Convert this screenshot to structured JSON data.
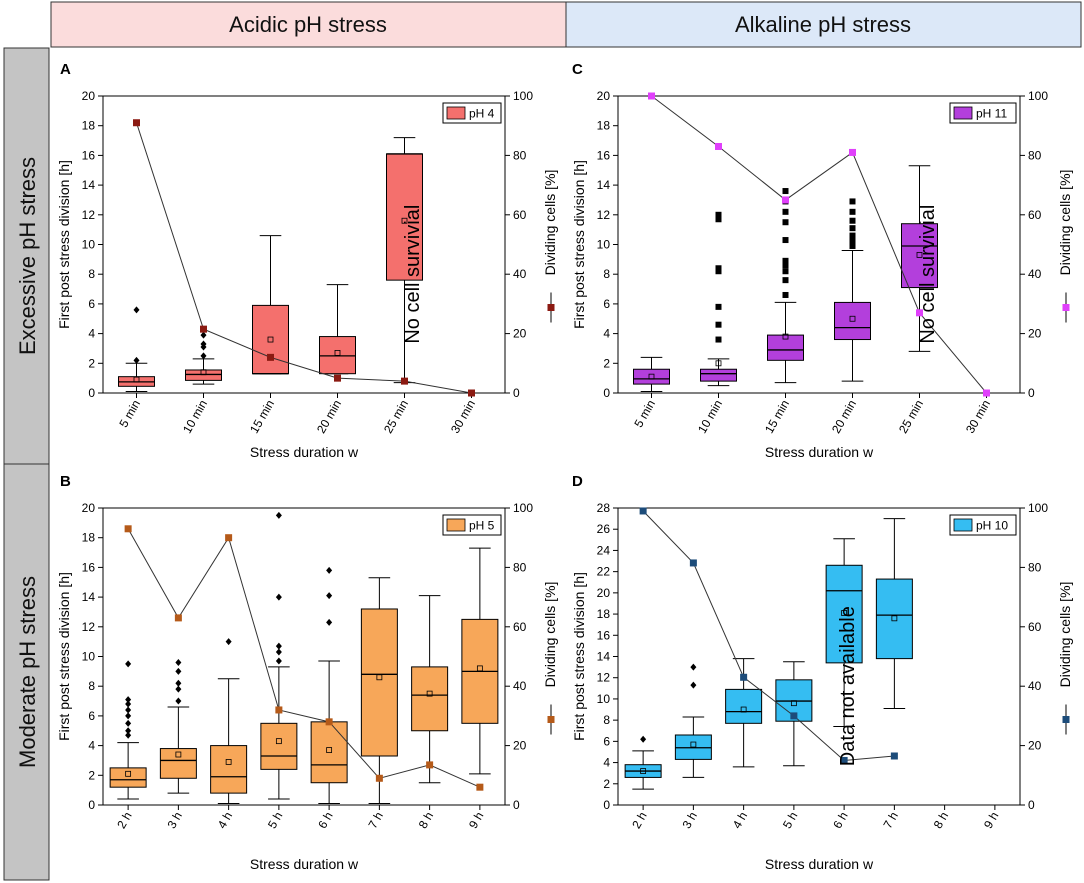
{
  "headers": {
    "columns": [
      "Acidic pH stress",
      "Alkaline pH stress"
    ],
    "rows": [
      "Excessive pH stress",
      "Moderate pH stress"
    ]
  },
  "chart_data": [
    {
      "panel": "A",
      "type": "box+line",
      "legend": "pH 4",
      "color": "#f4706d",
      "line_color": "#8b1a12",
      "note": "No cell survivial",
      "xlabel": "Stress duration w",
      "ylabel": "First post stress division [h]",
      "y2label": "Dividing cells [%]",
      "ylim": [
        0,
        20
      ],
      "yticks": [
        0,
        2,
        4,
        6,
        8,
        10,
        12,
        14,
        16,
        18,
        20
      ],
      "y2lim": [
        0,
        100
      ],
      "y2ticks": [
        0,
        20,
        40,
        60,
        80,
        100
      ],
      "categories": [
        "5 min",
        "10 min",
        "15 min",
        "20 min",
        "25 min",
        "30 min"
      ],
      "boxes": [
        {
          "q1": 0.45,
          "median": 0.75,
          "q3": 1.1,
          "lo": 0.1,
          "hi": 2.0,
          "mean": 0.9,
          "outliers": [
            2.2,
            5.6
          ]
        },
        {
          "q1": 0.85,
          "median": 1.25,
          "q3": 1.55,
          "lo": 0.6,
          "hi": 2.3,
          "mean": 1.4,
          "outliers": [
            2.5,
            3.1,
            3.3,
            3.9
          ]
        },
        {
          "q1": 1.3,
          "median": 1.3,
          "q3": 5.9,
          "lo": 1.3,
          "hi": 10.6,
          "mean": 3.6,
          "outliers": []
        },
        {
          "q1": 1.3,
          "median": 2.5,
          "q3": 3.8,
          "lo": 1.3,
          "hi": 7.3,
          "mean": 2.7,
          "outliers": []
        },
        {
          "q1": 7.6,
          "median": 16.1,
          "q3": 16.1,
          "lo": 0.7,
          "hi": 17.2,
          "mean": 11.6,
          "outliers": []
        },
        null
      ],
      "line": [
        91,
        21.5,
        12,
        5,
        4,
        0
      ]
    },
    {
      "panel": "C",
      "type": "box+line",
      "legend": "pH 11",
      "color": "#b33fdc",
      "line_color": "#e040fb",
      "note": "No cell survivial",
      "xlabel": "Stress duration w",
      "ylabel": "First post stress division [h]",
      "y2label": "Dividing cells [%]",
      "ylim": [
        0,
        20
      ],
      "yticks": [
        0,
        2,
        4,
        6,
        8,
        10,
        12,
        14,
        16,
        18,
        20
      ],
      "y2lim": [
        0,
        100
      ],
      "y2ticks": [
        0,
        20,
        40,
        60,
        80,
        100
      ],
      "categories": [
        "5 min",
        "10 min",
        "15 min",
        "20 min",
        "25 min",
        "30 min"
      ],
      "boxes": [
        {
          "q1": 0.6,
          "median": 0.95,
          "q3": 1.6,
          "lo": 0.1,
          "hi": 2.4,
          "mean": 1.1,
          "outliers": []
        },
        {
          "q1": 0.8,
          "median": 1.3,
          "q3": 1.6,
          "lo": 0.5,
          "hi": 2.3,
          "mean": 2.0,
          "outliers": [
            3.6,
            4.6,
            5.8,
            8.2,
            8.4,
            11.7,
            12.0
          ]
        },
        {
          "q1": 2.2,
          "median": 2.9,
          "q3": 3.9,
          "lo": 0.7,
          "hi": 6.1,
          "mean": 3.8,
          "outliers": [
            6.6,
            7.6,
            8.2,
            8.6,
            8.9,
            10.3,
            11.5,
            12.2,
            12.9,
            13.6
          ]
        },
        {
          "q1": 3.6,
          "median": 4.4,
          "q3": 6.1,
          "lo": 0.8,
          "hi": 9.6,
          "mean": 5.0,
          "outliers": [
            9.9,
            10.3,
            10.6,
            11.1,
            11.6,
            12.2,
            12.9
          ]
        },
        {
          "q1": 7.1,
          "median": 9.9,
          "q3": 11.4,
          "lo": 2.8,
          "hi": 15.3,
          "mean": 9.3,
          "outliers": []
        },
        null
      ],
      "line": [
        100,
        83,
        65,
        81,
        27,
        0
      ]
    },
    {
      "panel": "B",
      "type": "box+line",
      "legend": "pH 5",
      "color": "#f7a759",
      "line_color": "#b55a19",
      "note": "",
      "xlabel": "Stress duration w",
      "ylabel": "First post stress division [h]",
      "y2label": "Dividing cells [%]",
      "ylim": [
        0,
        20
      ],
      "yticks": [
        0,
        2,
        4,
        6,
        8,
        10,
        12,
        14,
        16,
        18,
        20
      ],
      "y2lim": [
        0,
        100
      ],
      "y2ticks": [
        0,
        20,
        40,
        60,
        80,
        100
      ],
      "categories": [
        "2 h",
        "3 h",
        "4 h",
        "5 h",
        "6 h",
        "7 h",
        "8 h",
        "9 h"
      ],
      "boxes": [
        {
          "q1": 1.2,
          "median": 1.7,
          "q3": 2.5,
          "lo": 0.4,
          "hi": 4.2,
          "mean": 2.1,
          "outliers": [
            4.7,
            5.0,
            5.5,
            6.0,
            6.4,
            6.8,
            7.1,
            9.5
          ]
        },
        {
          "q1": 1.8,
          "median": 3.0,
          "q3": 3.8,
          "lo": 0.8,
          "hi": 6.6,
          "mean": 3.4,
          "outliers": [
            7.0,
            7.8,
            8.2,
            9.0,
            9.6
          ]
        },
        {
          "q1": 0.8,
          "median": 1.9,
          "q3": 4.0,
          "lo": 0.1,
          "hi": 8.5,
          "mean": 2.9,
          "outliers": [
            11.0
          ]
        },
        {
          "q1": 2.4,
          "median": 3.3,
          "q3": 5.5,
          "lo": 0.4,
          "hi": 9.3,
          "mean": 4.3,
          "outliers": [
            9.7,
            10.3,
            10.7,
            14.0,
            19.5
          ]
        },
        {
          "q1": 1.5,
          "median": 2.7,
          "q3": 5.6,
          "lo": 0.1,
          "hi": 9.7,
          "mean": 3.7,
          "outliers": [
            12.3,
            14.1,
            15.8
          ]
        },
        {
          "q1": 3.3,
          "median": 8.8,
          "q3": 13.2,
          "lo": 0.1,
          "hi": 15.3,
          "mean": 8.6,
          "outliers": []
        },
        {
          "q1": 5.0,
          "median": 7.4,
          "q3": 9.3,
          "lo": 1.5,
          "hi": 14.1,
          "mean": 7.5,
          "outliers": []
        },
        {
          "q1": 5.5,
          "median": 9.0,
          "q3": 12.5,
          "lo": 2.1,
          "hi": 17.3,
          "mean": 9.2,
          "outliers": []
        }
      ],
      "line": [
        93,
        63,
        90,
        32,
        28,
        9,
        13.5,
        6
      ]
    },
    {
      "panel": "D",
      "type": "box+line",
      "legend": "pH 10",
      "color": "#35bdf2",
      "line_color": "#1d4c7a",
      "note": "Data not available",
      "xlabel": "Stress duration w",
      "ylabel": "First post stress division [h]",
      "y2label": "Dividing cells [%]",
      "ylim": [
        0,
        28
      ],
      "yticks": [
        0,
        2,
        4,
        6,
        8,
        10,
        12,
        14,
        16,
        18,
        20,
        22,
        24,
        26,
        28
      ],
      "y2lim": [
        0,
        100
      ],
      "y2ticks": [
        0,
        20,
        40,
        60,
        80,
        100
      ],
      "categories": [
        "2 h",
        "3 h",
        "4 h",
        "5 h",
        "6 h",
        "7 h",
        "8 h",
        "9 h"
      ],
      "boxes": [
        {
          "q1": 2.6,
          "median": 3.2,
          "q3": 3.8,
          "lo": 1.5,
          "hi": 5.1,
          "mean": 3.2,
          "outliers": [
            6.2
          ]
        },
        {
          "q1": 4.3,
          "median": 5.4,
          "q3": 6.6,
          "lo": 2.6,
          "hi": 8.3,
          "mean": 5.7,
          "outliers": [
            11.3,
            13.0
          ]
        },
        {
          "q1": 7.7,
          "median": 8.8,
          "q3": 10.9,
          "lo": 3.6,
          "hi": 13.8,
          "mean": 9.0,
          "outliers": []
        },
        {
          "q1": 7.9,
          "median": 9.8,
          "q3": 11.8,
          "lo": 3.7,
          "hi": 13.5,
          "mean": 9.6,
          "outliers": []
        },
        {
          "q1": 13.4,
          "median": 20.2,
          "q3": 22.6,
          "lo": 7.4,
          "hi": 25.1,
          "mean": 18.1,
          "outliers": []
        },
        {
          "q1": 13.8,
          "median": 17.9,
          "q3": 21.3,
          "lo": 9.1,
          "hi": 27.0,
          "mean": 17.6,
          "outliers": []
        },
        null,
        null
      ],
      "line": [
        99,
        81.5,
        43,
        30,
        15,
        16.5,
        null,
        null
      ]
    }
  ]
}
